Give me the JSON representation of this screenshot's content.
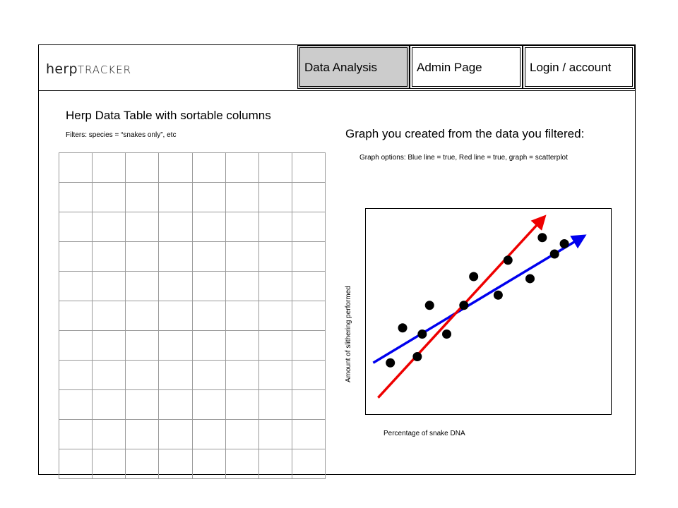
{
  "header": {
    "logo_part1": "herp",
    "logo_part2": "TRACKER",
    "nav": [
      {
        "label": "Data Analysis"
      },
      {
        "label": "Admin Page"
      },
      {
        "label": "Login / account"
      }
    ]
  },
  "table_section": {
    "title": "Herp Data Table with sortable columns",
    "filters": "Filters: species = “snakes only”, etc",
    "rows": 11,
    "cols": 8
  },
  "graph_section": {
    "title": "Graph you created from the data you filtered:",
    "options": "Graph options: Blue line = true, Red line = true, graph = scatterplot"
  },
  "chart_data": {
    "type": "scatter",
    "xlabel": "Percentage of snake DNA",
    "ylabel": "Amount of slithering performed",
    "xlim": [
      0,
      100
    ],
    "ylim": [
      0,
      100
    ],
    "points": [
      {
        "x": 10,
        "y": 25
      },
      {
        "x": 15,
        "y": 42
      },
      {
        "x": 21,
        "y": 28
      },
      {
        "x": 23,
        "y": 39
      },
      {
        "x": 26,
        "y": 53
      },
      {
        "x": 33,
        "y": 39
      },
      {
        "x": 40,
        "y": 53
      },
      {
        "x": 44,
        "y": 67
      },
      {
        "x": 54,
        "y": 58
      },
      {
        "x": 58,
        "y": 75
      },
      {
        "x": 67,
        "y": 66
      },
      {
        "x": 72,
        "y": 86
      },
      {
        "x": 77,
        "y": 78
      },
      {
        "x": 81,
        "y": 83
      }
    ],
    "lines": [
      {
        "color": "#0000ee",
        "x1": 3,
        "y1": 25,
        "x2": 88,
        "y2": 86
      },
      {
        "color": "#ee0000",
        "x1": 5,
        "y1": 8,
        "x2": 72,
        "y2": 95
      }
    ],
    "marker_color": "#000000",
    "grid": false
  }
}
